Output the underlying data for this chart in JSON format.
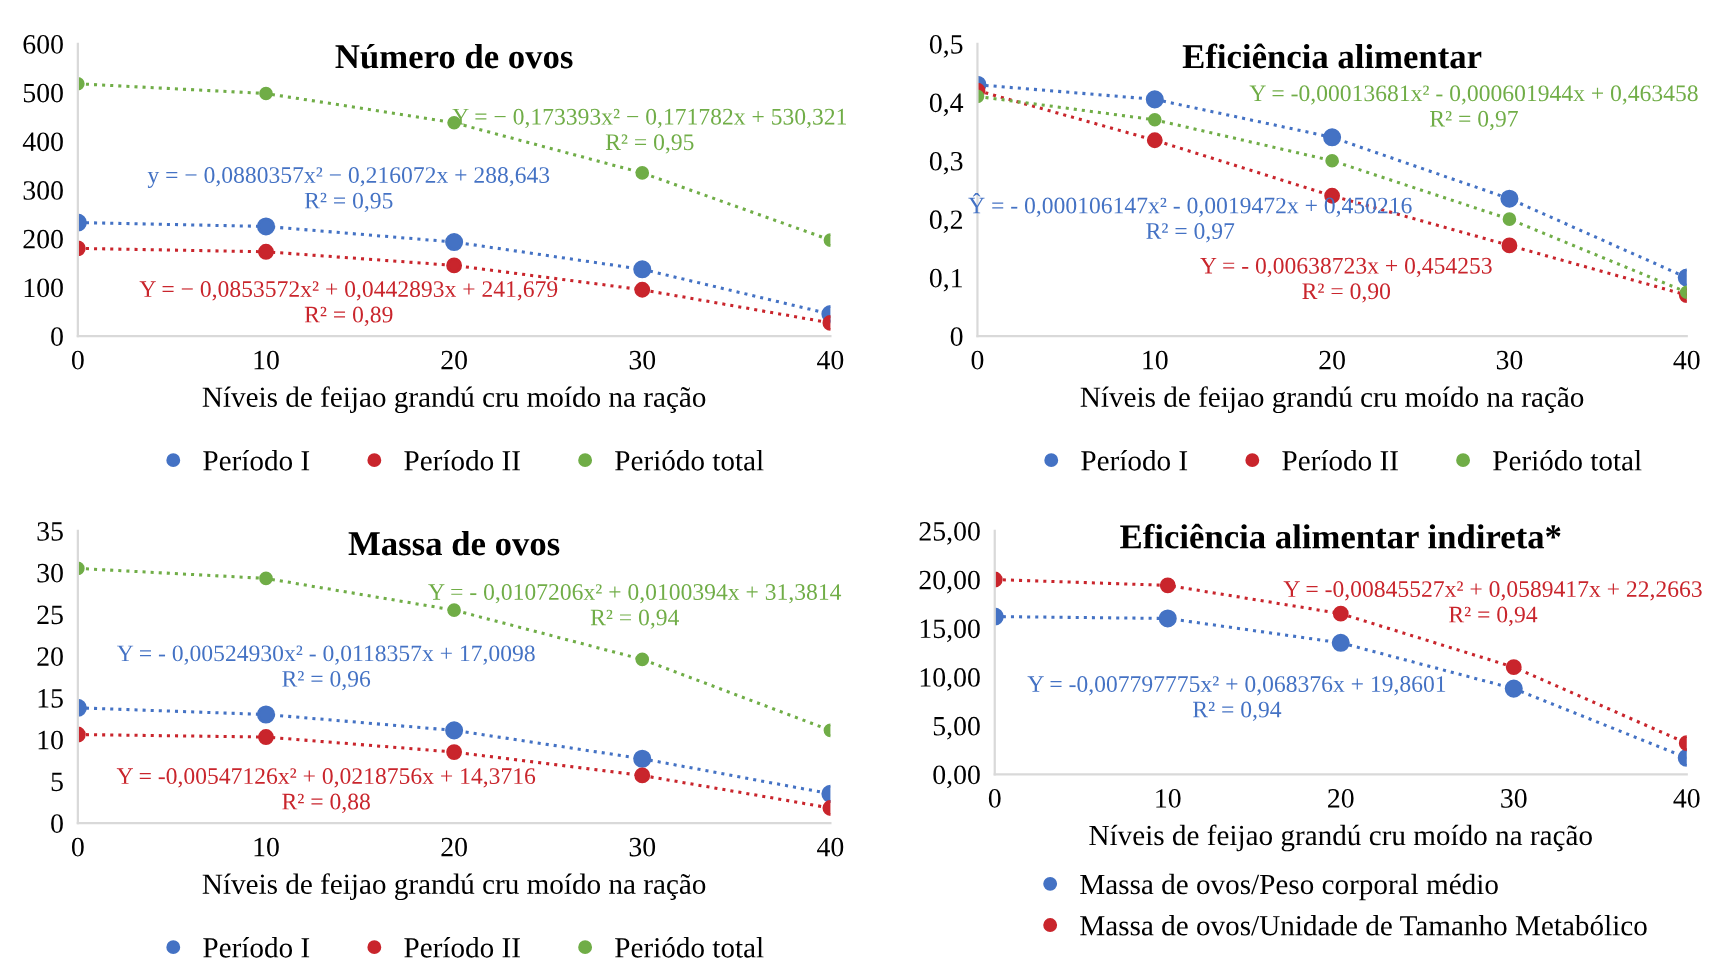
{
  "chart_data": [
    {
      "type": "line",
      "title": "Número de ovos",
      "xlabel": "Níveis de feijao grandú cru moído na ração",
      "x": [
        0,
        10,
        20,
        30,
        40
      ],
      "xlim": [
        0,
        40
      ],
      "xticks": [
        0,
        10,
        20,
        30,
        40
      ],
      "ylim": [
        0,
        600
      ],
      "yticks": [
        0,
        100,
        200,
        300,
        400,
        500,
        600
      ],
      "grid": false,
      "legend": "bottom",
      "marker": "circle",
      "line_style": "dotted",
      "series": [
        {
          "name": "Período I",
          "color": "#4472c4",
          "values": [
            233,
            225,
            193,
            137,
            45
          ]
        },
        {
          "name": "Período II",
          "color": "#c9252c",
          "values": [
            180,
            173,
            145,
            95,
            27
          ]
        },
        {
          "name": "Periódo total",
          "color": "#70ad47",
          "values": [
            518,
            498,
            438,
            335,
            197
          ]
        }
      ],
      "annotations": [
        "Y = − 0,173393x² − 0,171782x + 530,321\nR² = 0,95",
        "y = − 0,0880357x² − 0,216072x + 288,643\nR² = 0,95",
        "Y = − 0,0853572x² + 0,0442893x + 241,679\nR² = 0,89"
      ]
    },
    {
      "type": "line",
      "title": "Eficiência alimentar",
      "xlabel": "Níveis de feijao grandú cru moído na ração",
      "x": [
        0,
        10,
        20,
        30,
        40
      ],
      "xlim": [
        0,
        40
      ],
      "xticks": [
        0,
        10,
        20,
        30,
        40
      ],
      "ylim": [
        0,
        0.5
      ],
      "yticks": [
        0,
        {
          "value": 0.1,
          "label": "0,1"
        },
        {
          "value": 0.2,
          "label": "0,2"
        },
        {
          "value": 0.3,
          "label": "0,3"
        },
        {
          "value": 0.4,
          "label": "0,4"
        },
        {
          "value": 0.5,
          "label": "0,5"
        }
      ],
      "grid": false,
      "legend": "bottom",
      "marker": "circle",
      "line_style": "dotted",
      "series": [
        {
          "name": "Período I",
          "color": "#4472c4",
          "values": [
            0.43,
            0.405,
            0.34,
            0.235,
            0.1
          ]
        },
        {
          "name": "Período II",
          "color": "#c9252c",
          "values": [
            0.42,
            0.335,
            0.24,
            0.155,
            0.07
          ]
        },
        {
          "name": "Periódo total",
          "color": "#70ad47",
          "values": [
            0.41,
            0.37,
            0.3,
            0.2,
            0.075
          ]
        }
      ],
      "annotations": [
        "Y = -0,00013681x² - 0,000601944x + 0,463458\nR² = 0,97",
        "Ŷ = - 0,000106147x² - 0,0019472x + 0,450216\nR² = 0,97",
        "Y = - 0,00638723x + 0,454253\nR² = 0,90"
      ]
    },
    {
      "type": "line",
      "title": "Massa de ovos",
      "xlabel": "Níveis de feijao grandú cru moído na ração",
      "x": [
        0,
        10,
        20,
        30,
        40
      ],
      "xlim": [
        0,
        40
      ],
      "xticks": [
        0,
        10,
        20,
        30,
        40
      ],
      "ylim": [
        0,
        35
      ],
      "yticks": [
        0,
        5,
        10,
        15,
        20,
        25,
        30,
        35
      ],
      "grid": false,
      "legend": "bottom",
      "marker": "circle",
      "line_style": "dotted",
      "series": [
        {
          "name": "Período I",
          "color": "#4472c4",
          "values": [
            13.8,
            13.0,
            11.1,
            7.7,
            3.5
          ]
        },
        {
          "name": "Período II",
          "color": "#c9252c",
          "values": [
            10.6,
            10.3,
            8.5,
            5.7,
            1.8
          ]
        },
        {
          "name": "Periódo total",
          "color": "#70ad47",
          "values": [
            30.5,
            29.3,
            25.5,
            19.6,
            11.1
          ]
        }
      ],
      "annotations": [
        "Y = - 0,0107206x² + 0,0100394x + 31,3814\nR² = 0,94",
        "Y = - 0,00524930x² - 0,0118357x + 17,0098\nR² = 0,96",
        "Y = -0,00547126x² + 0,0218756x + 14,3716\nR² = 0,88"
      ]
    },
    {
      "type": "line",
      "title": "Eficiência alimentar indireta*",
      "xlabel": "Níveis de feijao grandú cru moído na ração",
      "x": [
        0,
        10,
        20,
        30,
        40
      ],
      "xlim": [
        0,
        40
      ],
      "xticks": [
        0,
        10,
        20,
        30,
        40
      ],
      "ylim": [
        0,
        25
      ],
      "yticks": [
        {
          "value": 0,
          "label": "0,00"
        },
        {
          "value": 5,
          "label": "5,00"
        },
        {
          "value": 10,
          "label": "10,00"
        },
        {
          "value": 15,
          "label": "15,00"
        },
        {
          "value": 20,
          "label": "20,00"
        },
        {
          "value": 25,
          "label": "25,00"
        }
      ],
      "grid": false,
      "legend": "bottom",
      "marker": "circle",
      "line_style": "dotted",
      "series": [
        {
          "name": "Massa de ovos/Peso corporal médio",
          "color": "#4472c4",
          "values": [
            16.2,
            16.0,
            13.5,
            8.8,
            1.7
          ]
        },
        {
          "name": "Massa de ovos/Unidade de Tamanho Metabólico",
          "color": "#c9252c",
          "values": [
            20.0,
            19.4,
            16.5,
            11.0,
            3.2
          ]
        }
      ],
      "annotations": [
        "Y = -0,00845527x² + 0,0589417x + 22,2663\nR² = 0,94",
        "Y = -0,007797775x² + 0,068376x + 19,8601\nR² = 0,94"
      ]
    }
  ]
}
